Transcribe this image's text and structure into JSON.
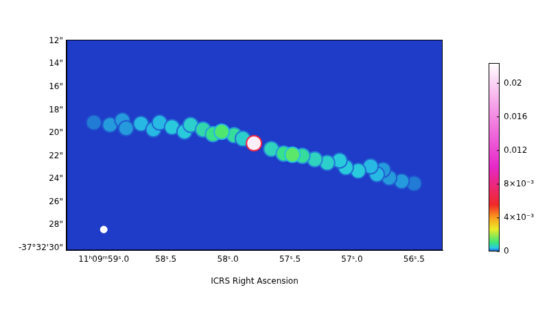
{
  "chart_data": {
    "type": "scatter",
    "xlabel": "ICRS Right Ascension",
    "xlim": [
      59.3,
      56.27
    ],
    "xticks": [
      {
        "value": 59.0,
        "label": "11ʰ09ᵐ59ˢ.0"
      },
      {
        "value": 58.5,
        "label": "58ˢ.5"
      },
      {
        "value": 58.0,
        "label": "58ˢ.0"
      },
      {
        "value": 57.5,
        "label": "57ˢ.5"
      },
      {
        "value": 57.0,
        "label": "57ˢ.0"
      },
      {
        "value": 56.5,
        "label": "56ˢ.5"
      }
    ],
    "ylim": [
      11.9,
      30.2
    ],
    "yticks": [
      {
        "value": 12,
        "label": "12\""
      },
      {
        "value": 14,
        "label": "14\""
      },
      {
        "value": 16,
        "label": "16\""
      },
      {
        "value": 18,
        "label": "18\""
      },
      {
        "value": 20,
        "label": "20\""
      },
      {
        "value": 22,
        "label": "22\""
      },
      {
        "value": 24,
        "label": "24\""
      },
      {
        "value": 26,
        "label": "26\""
      },
      {
        "value": 28,
        "label": "28\""
      },
      {
        "value": 30,
        "label": "-37°32'30\""
      }
    ],
    "grid": false,
    "points": {
      "x": [
        59.08,
        58.95,
        58.85,
        58.82,
        58.7,
        58.6,
        58.55,
        58.45,
        58.35,
        58.3,
        58.2,
        58.12,
        57.95,
        57.88,
        58.05,
        57.79,
        56.5,
        56.6,
        56.7,
        56.75,
        56.8,
        56.85,
        56.95,
        57.05,
        57.1,
        57.2,
        57.3,
        57.4,
        57.65,
        57.55,
        57.48
      ],
      "y": [
        19.1,
        19.3,
        18.9,
        19.6,
        19.2,
        19.7,
        19.1,
        19.5,
        19.9,
        19.3,
        19.7,
        20.1,
        20.2,
        20.5,
        19.9,
        20.9,
        24.4,
        24.2,
        23.9,
        23.2,
        23.6,
        22.9,
        23.3,
        23.0,
        22.4,
        22.6,
        22.3,
        22.0,
        21.4,
        21.8,
        21.9
      ],
      "intensity": [
        0.0002,
        0.0003,
        0.0003,
        0.0003,
        0.0004,
        0.0004,
        0.0004,
        0.0005,
        0.0005,
        0.0006,
        0.0008,
        0.001,
        0.0009,
        0.0006,
        0.0013,
        0.0215,
        0.0002,
        0.0003,
        0.0003,
        0.0003,
        0.0004,
        0.0004,
        0.0005,
        0.0005,
        0.0005,
        0.0006,
        0.0007,
        0.0009,
        0.0007,
        0.001,
        0.0014
      ]
    },
    "beam": {
      "x": 59.0,
      "y": 28.4
    },
    "colorbar": {
      "range": [
        0,
        0.0224
      ],
      "ticks": [
        0,
        {
          "value": 0.004,
          "label": "4×10⁻³"
        },
        {
          "value": 0.008,
          "label": "8×10⁻³"
        },
        0.012,
        0.016,
        0.02
      ]
    }
  }
}
